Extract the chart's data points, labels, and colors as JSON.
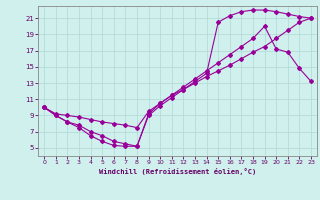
{
  "xlabel": "Windchill (Refroidissement éolien,°C)",
  "bg_color": "#cff0ec",
  "grid_color": "#b0d8d4",
  "line_color": "#990099",
  "xlim": [
    -0.5,
    23.5
  ],
  "ylim": [
    4,
    22.5
  ],
  "xticks": [
    0,
    1,
    2,
    3,
    4,
    5,
    6,
    7,
    8,
    9,
    10,
    11,
    12,
    13,
    14,
    15,
    16,
    17,
    18,
    19,
    20,
    21,
    22,
    23
  ],
  "yticks": [
    5,
    7,
    9,
    11,
    13,
    15,
    17,
    19,
    21
  ],
  "line1_x": [
    0,
    1,
    2,
    3,
    4,
    5,
    6,
    7,
    8,
    9,
    10,
    11,
    12,
    13,
    14,
    15,
    16,
    17,
    18,
    19,
    20,
    21,
    22,
    23
  ],
  "line1_y": [
    10,
    9,
    8.2,
    7.5,
    6.5,
    5.8,
    5.3,
    5.2,
    5.2,
    9.2,
    10.5,
    11.5,
    12.5,
    13.5,
    14.5,
    15.5,
    16.5,
    17.5,
    18.5,
    20.0,
    17.2,
    16.8,
    14.8,
    13.2
  ],
  "line2_x": [
    0,
    1,
    2,
    3,
    4,
    5,
    6,
    7,
    8,
    9,
    10,
    11,
    12,
    13,
    14,
    15,
    16,
    17,
    18,
    19,
    20,
    21,
    22,
    23
  ],
  "line2_y": [
    10,
    9,
    8.2,
    7.8,
    7.0,
    6.5,
    5.8,
    5.5,
    5.2,
    9.0,
    10.2,
    11.2,
    12.2,
    13.2,
    14.2,
    20.5,
    21.3,
    21.8,
    22.0,
    22.0,
    21.8,
    21.5,
    21.2,
    21.0
  ],
  "line3_x": [
    0,
    1,
    2,
    3,
    4,
    5,
    6,
    7,
    8,
    9,
    10,
    11,
    12,
    13,
    14,
    15,
    16,
    17,
    18,
    19,
    20,
    21,
    22,
    23
  ],
  "line3_y": [
    10,
    9.2,
    9.0,
    8.8,
    8.5,
    8.2,
    8.0,
    7.8,
    7.5,
    9.5,
    10.5,
    11.5,
    12.2,
    13.0,
    13.8,
    14.5,
    15.2,
    16.0,
    16.8,
    17.5,
    18.5,
    19.5,
    20.5,
    21.0
  ]
}
